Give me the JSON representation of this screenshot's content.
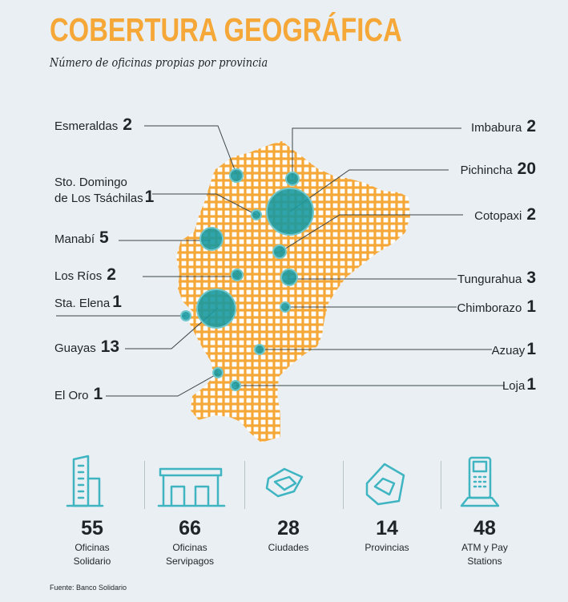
{
  "header": {
    "title": "COBERTURA GEOGRÁFICA",
    "subtitle": "Número de oficinas propias por provincia"
  },
  "colors": {
    "title": "#f5a737",
    "grid": "#f5a737",
    "bubble": "#1a9aa2",
    "bubble_stroke": "#6fc7cc"
  },
  "provinces": [
    {
      "name": "Esmeraldas",
      "count": "2"
    },
    {
      "name": "Sto. Domingo\nde Los Tsáchilas",
      "count": "1"
    },
    {
      "name": "Manabí",
      "count": "5"
    },
    {
      "name": "Los Ríos",
      "count": "2"
    },
    {
      "name": "Sta. Elena",
      "count": "1"
    },
    {
      "name": "Guayas",
      "count": "13"
    },
    {
      "name": "El Oro",
      "count": "1"
    },
    {
      "name": "Imbabura",
      "count": "2"
    },
    {
      "name": "Pichincha",
      "count": "20"
    },
    {
      "name": "Cotopaxi",
      "count": "2"
    },
    {
      "name": "Tungurahua",
      "count": "3"
    },
    {
      "name": "Chimborazo",
      "count": "1"
    },
    {
      "name": "Azuay",
      "count": "1"
    },
    {
      "name": "Loja",
      "count": "1"
    }
  ],
  "stats": [
    {
      "value": "55",
      "label": "Oficinas\nSolidario",
      "icon": "building-icon"
    },
    {
      "value": "66",
      "label": "Oficinas\nServipagos",
      "icon": "office-icon"
    },
    {
      "value": "28",
      "label": "Ciudades",
      "icon": "city-icon"
    },
    {
      "value": "14",
      "label": "Provincias",
      "icon": "province-icon"
    },
    {
      "value": "48",
      "label": "ATM y Pay\nStations",
      "icon": "atm-icon"
    }
  ],
  "source": "Fuente: Banco Solidario"
}
